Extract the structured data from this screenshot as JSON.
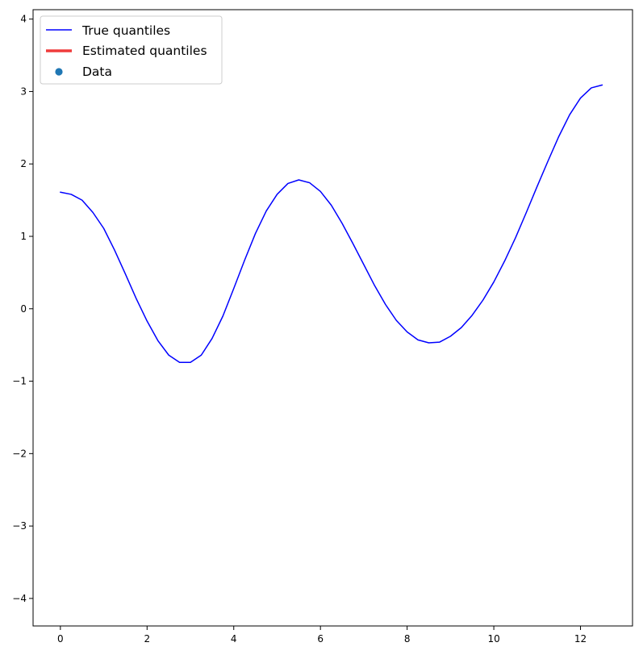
{
  "chart_data": {
    "type": "line",
    "xlim": [
      -0.63,
      13.2
    ],
    "ylim": [
      -4.38,
      4.13
    ],
    "x_ticks": [
      0,
      2,
      4,
      6,
      8,
      10,
      12
    ],
    "y_ticks": [
      -4,
      -3,
      -2,
      -1,
      0,
      1,
      2,
      3,
      4
    ],
    "grid": false,
    "legend_position": "top-left",
    "legend": [
      {
        "label": "True quantiles",
        "kind": "line",
        "color": "#0000ff"
      },
      {
        "label": "Estimated quantiles",
        "kind": "thick-line",
        "color": "#ef3b3b"
      },
      {
        "label": "Data",
        "kind": "marker",
        "color": "#1f77b4"
      }
    ],
    "series": [
      {
        "name": "True quantiles",
        "color": "#0000ff",
        "role": "true",
        "x": [
          0,
          0.25,
          0.5,
          0.75,
          1,
          1.25,
          1.5,
          1.75,
          2,
          2.25,
          2.5,
          2.75,
          3,
          3.25,
          3.5,
          3.75,
          4,
          4.25,
          4.5,
          4.75,
          5,
          5.25,
          5.5,
          5.75,
          6,
          6.25,
          6.5,
          6.75,
          7,
          7.25,
          7.5,
          7.75,
          8,
          8.25,
          8.5,
          8.75,
          9,
          9.25,
          9.5,
          9.75,
          10,
          10.25,
          10.5,
          10.75,
          11,
          11.25,
          11.5,
          11.75,
          12,
          12.25,
          12.5
        ],
        "y": [
          1.61,
          1.58,
          1.5,
          1.33,
          1.11,
          0.81,
          0.48,
          0.14,
          -0.17,
          -0.44,
          -0.64,
          -0.74,
          -0.74,
          -0.64,
          -0.41,
          -0.1,
          0.28,
          0.67,
          1.04,
          1.35,
          1.58,
          1.73,
          1.78,
          1.74,
          1.62,
          1.43,
          1.18,
          0.9,
          0.61,
          0.32,
          0.06,
          -0.16,
          -0.32,
          -0.43,
          -0.47,
          -0.46,
          -0.38,
          -0.26,
          -0.09,
          0.12,
          0.37,
          0.66,
          0.98,
          1.33,
          1.69,
          2.04,
          2.38,
          2.68,
          2.91,
          3.05,
          3.09
        ]
      }
    ]
  }
}
